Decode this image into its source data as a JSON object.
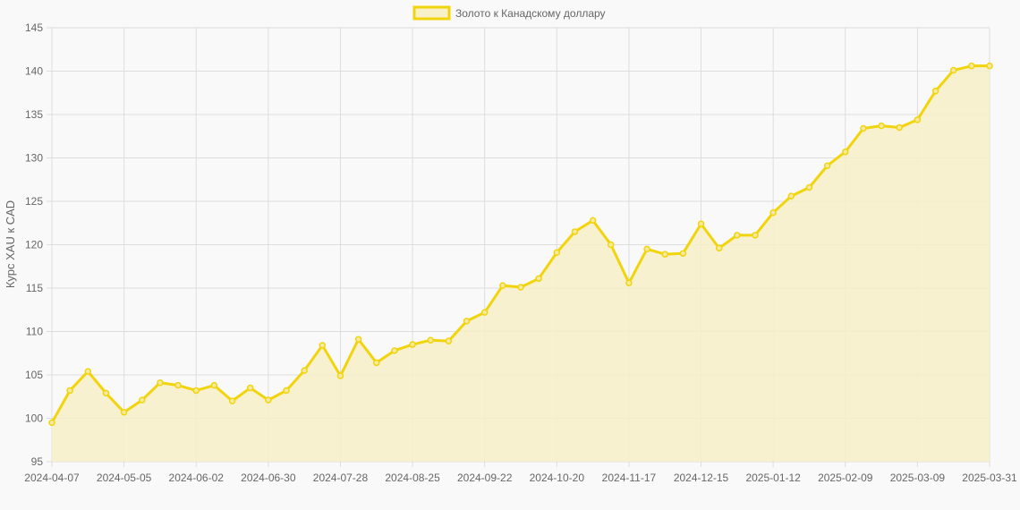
{
  "chart_data": {
    "type": "line",
    "title": "",
    "legend": {
      "position": "top",
      "entries": [
        "Золото к Канадскому доллару"
      ]
    },
    "xlabel": "",
    "ylabel": "Курс XAU к CAD",
    "ylim": [
      95,
      145
    ],
    "yticks": [
      "95",
      "100",
      "105",
      "110",
      "115",
      "120",
      "125",
      "130",
      "135",
      "140",
      "145"
    ],
    "xticks": [
      "2024-04-07",
      "2024-05-05",
      "2024-06-02",
      "2024-06-30",
      "2024-07-28",
      "2024-08-25",
      "2024-09-22",
      "2024-10-20",
      "2024-11-17",
      "2024-12-15",
      "2025-01-12",
      "2025-02-09",
      "2025-03-09",
      "2025-03-31"
    ],
    "grid": true,
    "fill": true,
    "colors": {
      "line": "#f2d40c",
      "fill": "#f8f0c8",
      "grid": "#dddddd",
      "background": "#f9f9f9"
    },
    "series": [
      {
        "name": "Золото к Канадскому доллару",
        "values": [
          99.5,
          103.2,
          105.4,
          102.9,
          100.7,
          102.1,
          104.1,
          103.8,
          103.2,
          103.8,
          102.0,
          103.5,
          102.1,
          103.2,
          105.5,
          108.4,
          104.9,
          109.1,
          106.4,
          107.8,
          108.5,
          109.0,
          108.9,
          111.2,
          112.2,
          115.3,
          115.1,
          116.1,
          119.1,
          121.5,
          122.8,
          120.0,
          115.6,
          119.5,
          118.9,
          119.0,
          122.4,
          119.6,
          121.1,
          121.1,
          123.7,
          125.6,
          126.6,
          129.1,
          130.7,
          133.4,
          133.7,
          133.5,
          134.4,
          137.7,
          140.1,
          140.6,
          140.6
        ]
      }
    ]
  }
}
